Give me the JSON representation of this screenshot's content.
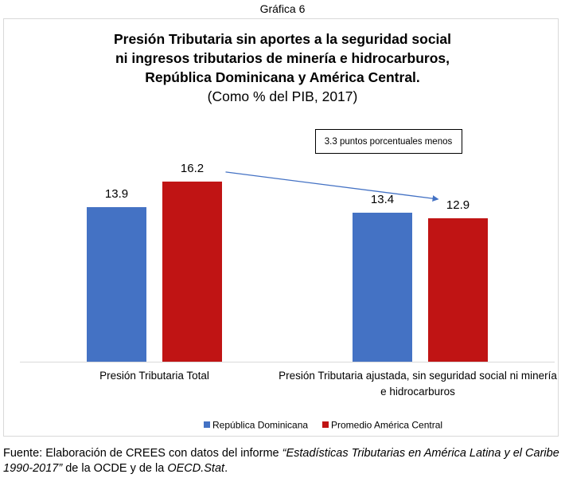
{
  "caption": "Gráfica 6",
  "chart_data": {
    "type": "bar",
    "title": [
      "Presión Tributaria sin aportes a la seguridad social",
      "ni ingresos tributarios de minería e hidrocarburos,",
      "República Dominicana y América Central."
    ],
    "subtitle": "(Como % del PIB, 2017)",
    "categories": [
      [
        "Presión Tributaria Total"
      ],
      [
        "Presión Tributaria ajustada, sin seguridad social ni minería",
        "e hidrocarburos"
      ]
    ],
    "series": [
      {
        "name": "República Dominicana",
        "color": "#4472C4",
        "values": [
          13.9,
          13.4
        ],
        "labels": [
          "13.9",
          "13.4"
        ]
      },
      {
        "name": "Promedio América Central",
        "color": "#C01414",
        "values": [
          16.2,
          12.9
        ],
        "labels": [
          "16.2",
          "12.9"
        ]
      }
    ],
    "xlabel": "",
    "ylabel": "",
    "ylim": [
      0,
      18.2
    ],
    "grid": false,
    "y_axis_visible": false,
    "legend": "bottom-center",
    "annotations": [
      {
        "type": "textbox",
        "text": "3.3 puntos porcentuales menos",
        "position": "above-right-category"
      },
      {
        "type": "arrow",
        "from": "Promedio América Central / Presión Tributaria Total",
        "to": "Promedio América Central / Presión Tributaria ajustada",
        "color": "#4472C4"
      }
    ]
  },
  "source": {
    "prefix": "Fuente: Elaboración de CREES con datos del informe ",
    "report_italic": "“Estadísticas Tributarias en América Latina y el Caribe 1990-2017”",
    "middle": " de la OCDE y de la ",
    "stat_italic": "OECD.Stat",
    "suffix": "."
  }
}
